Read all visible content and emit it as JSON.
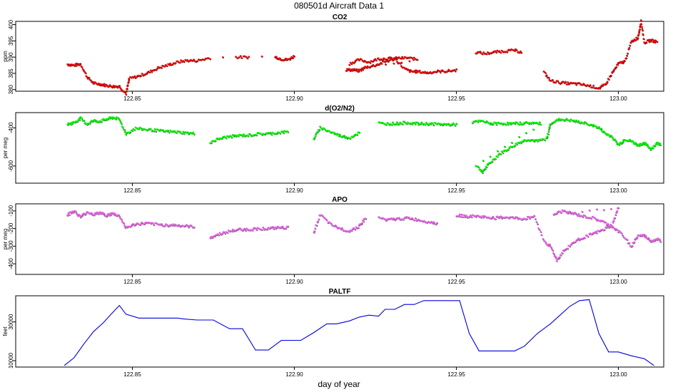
{
  "figure": {
    "title": "080501d    Aircraft Data 1",
    "xlabel": "day of year"
  },
  "chart_data": [
    {
      "type": "scatter",
      "title": "CO2",
      "ylabel": "ppm",
      "color": "#e00000",
      "xlim": [
        122.814,
        123.014
      ],
      "ylim": [
        379.5,
        401
      ],
      "yticks": [
        380,
        385,
        390,
        395,
        400
      ],
      "xticks": [
        122.85,
        122.9,
        122.95,
        123.0
      ],
      "xticklabels": [
        "122.85",
        "122.90",
        "122.95",
        "123.00"
      ],
      "points": [
        [
          122.83,
          387.8
        ],
        [
          122.832,
          387.5
        ],
        [
          122.834,
          387.9
        ],
        [
          122.836,
          384.0
        ],
        [
          122.838,
          382.0
        ],
        [
          122.84,
          381.7
        ],
        [
          122.842,
          381.3
        ],
        [
          122.844,
          381.0
        ],
        [
          122.846,
          381.0
        ],
        [
          122.848,
          378.8
        ],
        [
          122.849,
          383.4
        ],
        [
          122.852,
          384.2
        ],
        [
          122.855,
          385.3
        ],
        [
          122.858,
          386.7
        ],
        [
          122.861,
          387.6
        ],
        [
          122.864,
          388.5
        ],
        [
          122.867,
          389.0
        ],
        [
          122.87,
          388.9
        ],
        [
          122.874,
          389.8
        ],
        [
          122.878,
          390.0
        ],
        [
          122.882,
          390.0
        ],
        [
          122.886,
          390.0
        ],
        [
          122.89,
          390.1
        ],
        [
          122.894,
          390.1
        ],
        [
          122.896,
          389.4
        ],
        [
          122.898,
          389.2
        ],
        [
          122.9,
          390.3
        ],
        [
          122.917,
          388.0
        ],
        [
          122.92,
          389.2
        ],
        [
          122.923,
          388.5
        ],
        [
          122.926,
          389.5
        ],
        [
          122.929,
          389.6
        ],
        [
          122.932,
          389.7
        ],
        [
          122.935,
          389.8
        ],
        [
          122.938,
          389.3
        ],
        [
          122.916,
          386.1
        ],
        [
          122.918,
          386.1
        ],
        [
          122.92,
          385.8
        ],
        [
          122.922,
          386.9
        ],
        [
          122.925,
          387.5
        ],
        [
          122.928,
          388.6
        ],
        [
          122.931,
          389.5
        ],
        [
          122.934,
          386.4
        ],
        [
          122.936,
          385.6
        ],
        [
          122.938,
          385.6
        ],
        [
          122.941,
          385.2
        ],
        [
          122.944,
          385.6
        ],
        [
          122.947,
          385.7
        ],
        [
          122.95,
          386.0
        ],
        [
          122.956,
          391.5
        ],
        [
          122.959,
          391.1
        ],
        [
          122.962,
          391.6
        ],
        [
          122.965,
          391.9
        ],
        [
          122.968,
          392.1
        ],
        [
          122.97,
          391.5
        ],
        [
          122.977,
          385.4
        ],
        [
          122.979,
          382.8
        ],
        [
          122.982,
          382.2
        ],
        [
          122.985,
          381.9
        ],
        [
          122.988,
          381.7
        ],
        [
          122.991,
          381.2
        ],
        [
          122.994,
          380.5
        ],
        [
          122.996,
          381.5
        ],
        [
          122.998,
          385.0
        ],
        [
          123.0,
          388.0
        ],
        [
          123.002,
          388.7
        ],
        [
          123.004,
          394.8
        ],
        [
          123.006,
          396.0
        ],
        [
          123.007,
          401.0
        ],
        [
          123.008,
          394.5
        ],
        [
          123.01,
          395.2
        ],
        [
          123.012,
          394.7
        ]
      ]
    },
    {
      "type": "scatter",
      "title": "d(O2/N2)",
      "ylabel": "per meg",
      "color": "#00ee00",
      "xlim": [
        122.814,
        123.014
      ],
      "ylim": [
        -690,
        -320
      ],
      "yticks": [
        -600,
        -400
      ],
      "xticks": [
        122.85,
        122.9,
        122.95,
        123.0
      ],
      "xticklabels": [
        "122.85",
        "122.90",
        "122.95",
        "123.00"
      ],
      "points": [
        [
          122.83,
          -380
        ],
        [
          122.832,
          -372
        ],
        [
          122.834,
          -350
        ],
        [
          122.836,
          -380
        ],
        [
          122.838,
          -362
        ],
        [
          122.84,
          -365
        ],
        [
          122.842,
          -355
        ],
        [
          122.844,
          -345
        ],
        [
          122.846,
          -355
        ],
        [
          122.848,
          -430
        ],
        [
          122.851,
          -402
        ],
        [
          122.854,
          -408
        ],
        [
          122.857,
          -412
        ],
        [
          122.86,
          -418
        ],
        [
          122.863,
          -420
        ],
        [
          122.866,
          -425
        ],
        [
          122.869,
          -430
        ],
        [
          122.874,
          -475
        ],
        [
          122.877,
          -455
        ],
        [
          122.88,
          -445
        ],
        [
          122.883,
          -440
        ],
        [
          122.886,
          -438
        ],
        [
          122.889,
          -432
        ],
        [
          122.892,
          -430
        ],
        [
          122.895,
          -425
        ],
        [
          122.898,
          -420
        ],
        [
          122.906,
          -455
        ],
        [
          122.908,
          -398
        ],
        [
          122.911,
          -420
        ],
        [
          122.914,
          -440
        ],
        [
          122.917,
          -452
        ],
        [
          122.92,
          -425
        ],
        [
          122.926,
          -375
        ],
        [
          122.929,
          -378
        ],
        [
          122.932,
          -376
        ],
        [
          122.935,
          -372
        ],
        [
          122.938,
          -378
        ],
        [
          122.941,
          -378
        ],
        [
          122.944,
          -380
        ],
        [
          122.947,
          -382
        ],
        [
          122.95,
          -382
        ],
        [
          122.955,
          -370
        ],
        [
          122.958,
          -365
        ],
        [
          122.961,
          -378
        ],
        [
          122.964,
          -376
        ],
        [
          122.967,
          -378
        ],
        [
          122.97,
          -376
        ],
        [
          122.973,
          -373
        ],
        [
          122.976,
          -378
        ],
        [
          122.956,
          -595
        ],
        [
          122.958,
          -630
        ],
        [
          122.96,
          -590
        ],
        [
          122.963,
          -540
        ],
        [
          122.966,
          -510
        ],
        [
          122.969,
          -480
        ],
        [
          122.972,
          -460
        ],
        [
          122.975,
          -470
        ],
        [
          122.978,
          -455
        ],
        [
          122.979,
          -375
        ],
        [
          122.982,
          -355
        ],
        [
          122.985,
          -360
        ],
        [
          122.988,
          -370
        ],
        [
          122.991,
          -380
        ],
        [
          122.994,
          -400
        ],
        [
          122.996,
          -430
        ],
        [
          122.998,
          -445
        ],
        [
          123.0,
          -490
        ],
        [
          123.002,
          -460
        ],
        [
          123.004,
          -470
        ],
        [
          123.006,
          -490
        ],
        [
          123.008,
          -480
        ],
        [
          123.01,
          -510
        ],
        [
          123.012,
          -480
        ],
        [
          123.013,
          -485
        ]
      ]
    },
    {
      "type": "scatter",
      "title": "APO",
      "ylabel": "per meg",
      "color": "#e060e0",
      "xlim": [
        122.814,
        123.014
      ],
      "ylim": [
        -460,
        -60
      ],
      "yticks": [
        -400,
        -300,
        -200,
        -100
      ],
      "xticks": [
        122.85,
        122.9,
        122.95,
        123.0
      ],
      "xticklabels": [
        "122.85",
        "122.90",
        "122.95",
        "123.00"
      ],
      "points": [
        [
          122.83,
          -120
        ],
        [
          122.832,
          -100
        ],
        [
          122.834,
          -135
        ],
        [
          122.836,
          -105
        ],
        [
          122.838,
          -120
        ],
        [
          122.84,
          -110
        ],
        [
          122.842,
          -125
        ],
        [
          122.844,
          -115
        ],
        [
          122.846,
          -130
        ],
        [
          122.848,
          -195
        ],
        [
          122.851,
          -175
        ],
        [
          122.854,
          -170
        ],
        [
          122.857,
          -175
        ],
        [
          122.86,
          -180
        ],
        [
          122.863,
          -180
        ],
        [
          122.866,
          -185
        ],
        [
          122.869,
          -190
        ],
        [
          122.874,
          -250
        ],
        [
          122.877,
          -230
        ],
        [
          122.88,
          -215
        ],
        [
          122.883,
          -205
        ],
        [
          122.886,
          -205
        ],
        [
          122.889,
          -200
        ],
        [
          122.892,
          -200
        ],
        [
          122.895,
          -195
        ],
        [
          122.898,
          -195
        ],
        [
          122.906,
          -220
        ],
        [
          122.908,
          -120
        ],
        [
          122.911,
          -175
        ],
        [
          122.914,
          -200
        ],
        [
          122.917,
          -215
        ],
        [
          122.92,
          -185
        ],
        [
          122.922,
          -140
        ],
        [
          122.926,
          -140
        ],
        [
          122.929,
          -150
        ],
        [
          122.932,
          -145
        ],
        [
          122.935,
          -140
        ],
        [
          122.938,
          -150
        ],
        [
          122.941,
          -160
        ],
        [
          122.944,
          -170
        ],
        [
          122.95,
          -125
        ],
        [
          122.953,
          -130
        ],
        [
          122.956,
          -130
        ],
        [
          122.959,
          -135
        ],
        [
          122.962,
          -140
        ],
        [
          122.965,
          -135
        ],
        [
          122.968,
          -140
        ],
        [
          122.971,
          -145
        ],
        [
          122.974,
          -130
        ],
        [
          122.977,
          -270
        ],
        [
          122.979,
          -300
        ],
        [
          122.981,
          -380
        ],
        [
          122.983,
          -330
        ],
        [
          122.986,
          -280
        ],
        [
          122.989,
          -250
        ],
        [
          122.992,
          -230
        ],
        [
          122.995,
          -210
        ],
        [
          122.998,
          -180
        ],
        [
          123.0,
          -80
        ],
        [
          122.98,
          -120
        ],
        [
          122.983,
          -100
        ],
        [
          122.986,
          -115
        ],
        [
          122.989,
          -130
        ],
        [
          122.992,
          -140
        ],
        [
          122.995,
          -160
        ],
        [
          122.998,
          -190
        ],
        [
          123.001,
          -230
        ],
        [
          123.004,
          -300
        ],
        [
          123.006,
          -240
        ],
        [
          123.008,
          -240
        ],
        [
          123.01,
          -270
        ],
        [
          123.012,
          -260
        ],
        [
          123.013,
          -270
        ]
      ]
    },
    {
      "type": "line",
      "title": "PALTF",
      "ylabel": "feet",
      "color": "#0000dd",
      "xlim": [
        122.814,
        123.014
      ],
      "ylim": [
        6700,
        43500
      ],
      "yticks": [
        10000,
        30000
      ],
      "xticks": [
        122.85,
        122.9,
        122.95,
        123.0
      ],
      "xticklabels": [
        "122.85",
        "122.90",
        "122.95",
        "123.00"
      ],
      "x": [
        122.829,
        122.832,
        122.835,
        122.838,
        122.841,
        122.844,
        122.846,
        122.848,
        122.852,
        122.856,
        122.86,
        122.864,
        122.866,
        122.87,
        122.875,
        122.88,
        122.884,
        122.888,
        122.892,
        122.896,
        122.898,
        122.902,
        122.906,
        122.91,
        122.913,
        122.917,
        122.92,
        122.923,
        122.926,
        122.928,
        122.931,
        122.934,
        122.937,
        122.94,
        122.944,
        122.948,
        122.951,
        122.954,
        122.957,
        122.961,
        122.965,
        122.968,
        122.971,
        122.975,
        122.979,
        122.982,
        122.985,
        122.988,
        122.991,
        122.994,
        122.997,
        123.0,
        123.004,
        123.008,
        123.011
      ],
      "y": [
        7500,
        11500,
        18500,
        25000,
        29500,
        35000,
        38500,
        34000,
        32000,
        32000,
        32000,
        32000,
        31500,
        31000,
        31000,
        26500,
        26500,
        15500,
        15500,
        20500,
        20500,
        20500,
        24500,
        29000,
        29000,
        30500,
        32500,
        33500,
        33000,
        36500,
        36500,
        39000,
        39000,
        41000,
        41000,
        41000,
        41000,
        24000,
        15000,
        15000,
        15000,
        15000,
        17500,
        24000,
        29000,
        33500,
        38000,
        41000,
        41500,
        24000,
        14500,
        14500,
        12500,
        11000,
        7500
      ]
    }
  ]
}
